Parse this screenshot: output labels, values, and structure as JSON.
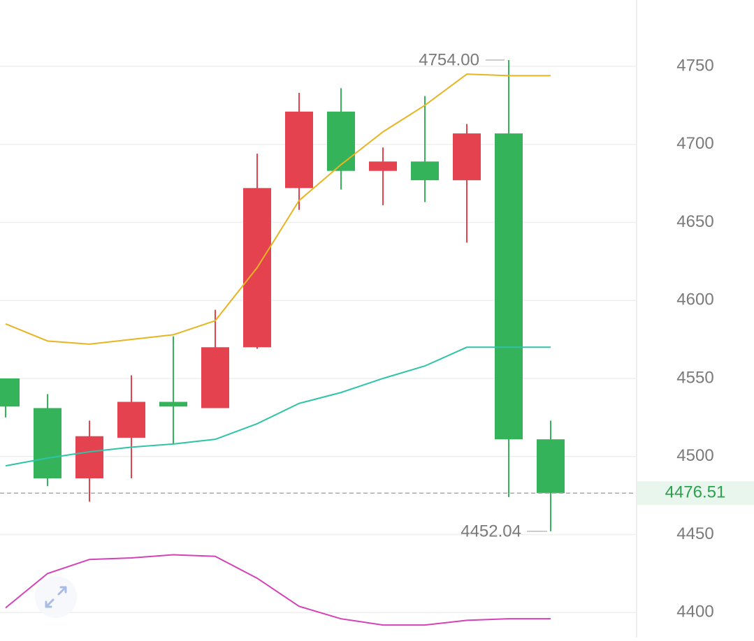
{
  "chart_data": {
    "type": "candlestick",
    "categories": [
      null,
      null,
      null,
      null,
      null,
      null,
      null,
      null,
      null,
      null,
      null,
      null,
      null,
      null
    ],
    "open": [
      4550,
      4531,
      4486,
      4512,
      4535,
      4531,
      4570,
      4672,
      4721,
      4683,
      4689,
      4677,
      4707,
      4511
    ],
    "high": [
      4550,
      4540,
      4523,
      4552,
      4577,
      4594,
      4694,
      4733,
      4736,
      4698,
      4731,
      4713,
      4754,
      4523
    ],
    "low": [
      4525,
      4481,
      4471,
      4486,
      4508,
      4531,
      4569,
      4658,
      4671,
      4661,
      4663,
      4637,
      4474,
      4452.04
    ],
    "close": [
      4532,
      4486,
      4513,
      4535,
      4532,
      4570,
      4672,
      4721,
      4683,
      4689,
      4677,
      4707,
      4511,
      4476.51
    ],
    "up_color": "#e5424f",
    "down_color": "#35b35a",
    "lines": [
      {
        "color": "#e8b422",
        "values": [
          4585,
          4574,
          4572,
          4575,
          4578,
          4587,
          4621,
          4664,
          4687,
          4708,
          4725,
          4745,
          4744,
          4744
        ]
      },
      {
        "color": "#2ec4a8",
        "values": [
          4494,
          4499,
          4503,
          4506,
          4508,
          4511,
          4521,
          4534,
          4541,
          4550,
          4558,
          4570,
          4570,
          4570
        ]
      },
      {
        "color": "#d442b8",
        "values": [
          4403,
          4425,
          4434,
          4435,
          4437,
          4436,
          4422,
          4404,
          4396,
          4392,
          4392,
          4395,
          4396,
          4396
        ]
      }
    ],
    "ylim": [
      4384,
      4792.5
    ],
    "yticks": [
      4400,
      4450,
      4500,
      4550,
      4600,
      4650,
      4700,
      4750
    ],
    "grid": true,
    "y_axis_side": "right",
    "last_price": {
      "value": 4476.51,
      "color": "#2aa14c"
    },
    "max_label": {
      "value": 4754,
      "label": "4754.00"
    },
    "min_label": 4452.04
  }
}
